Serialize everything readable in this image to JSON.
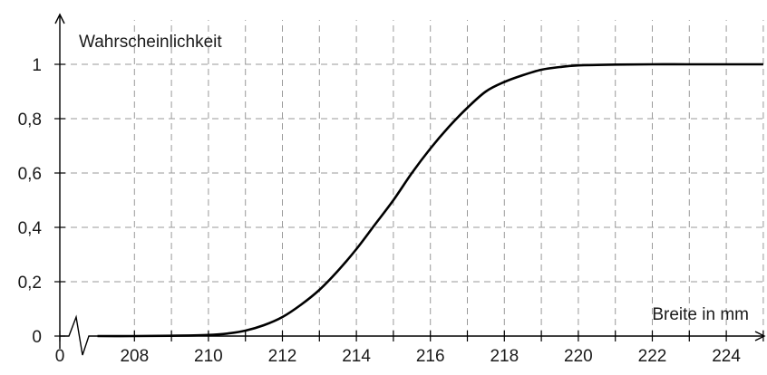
{
  "chart_data": {
    "type": "line",
    "title": "",
    "ylabel": "Wahrscheinlichkeit",
    "xlabel": "Breite in mm",
    "x_break": true,
    "x_break_label": "0",
    "xlim": [
      207,
      225
    ],
    "ylim": [
      0,
      1
    ],
    "x_ticks": [
      208,
      209,
      210,
      211,
      212,
      213,
      214,
      215,
      216,
      217,
      218,
      219,
      220,
      221,
      222,
      223,
      224,
      225
    ],
    "x_tick_labels": [
      "208",
      "210",
      "212",
      "214",
      "216",
      "218",
      "220",
      "222",
      "224"
    ],
    "y_ticks": [
      0,
      0.2,
      0.4,
      0.6,
      0.8,
      1
    ],
    "y_tick_labels": [
      "0",
      "0,2",
      "0,4",
      "0,6",
      "0,8",
      "1"
    ],
    "grid": true,
    "series": [
      {
        "color": "#000000",
        "x": [
          207,
          208,
          209,
          210,
          210.5,
          211,
          211.5,
          212,
          212.5,
          213,
          213.5,
          214,
          214.5,
          215,
          215.5,
          216,
          216.5,
          217,
          217.5,
          218,
          218.5,
          219,
          219.5,
          220,
          221,
          222,
          223,
          224,
          225
        ],
        "y": [
          0,
          0,
          0.001,
          0.004,
          0.009,
          0.02,
          0.04,
          0.07,
          0.115,
          0.17,
          0.24,
          0.32,
          0.41,
          0.5,
          0.6,
          0.69,
          0.77,
          0.84,
          0.9,
          0.935,
          0.96,
          0.98,
          0.99,
          0.996,
          0.999,
          1,
          1,
          1,
          1
        ]
      }
    ]
  }
}
